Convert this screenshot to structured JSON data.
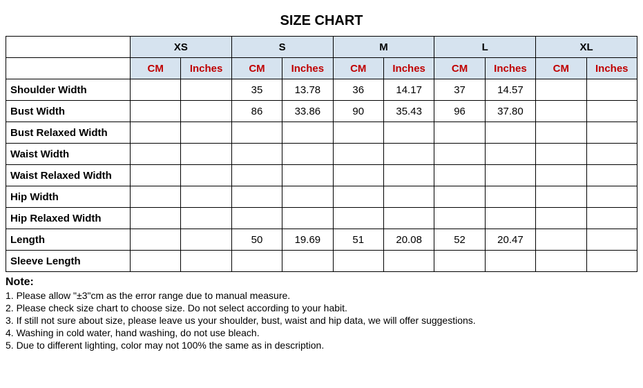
{
  "title": "SIZE CHART",
  "sizes": [
    "XS",
    "S",
    "M",
    "L",
    "XL"
  ],
  "units": {
    "cm": "CM",
    "inches": "Inches"
  },
  "rowLabels": [
    "Shoulder Width",
    "Bust Width",
    "Bust Relaxed Width",
    "Waist Width",
    "Waist Relaxed Width",
    "Hip Width",
    "Hip Relaxed Width",
    "Length",
    "Sleeve Length"
  ],
  "data": {
    "Shoulder Width": {
      "XS": {
        "cm": "",
        "in": ""
      },
      "S": {
        "cm": "35",
        "in": "13.78"
      },
      "M": {
        "cm": "36",
        "in": "14.17"
      },
      "L": {
        "cm": "37",
        "in": "14.57"
      },
      "XL": {
        "cm": "",
        "in": ""
      }
    },
    "Bust Width": {
      "XS": {
        "cm": "",
        "in": ""
      },
      "S": {
        "cm": "86",
        "in": "33.86"
      },
      "M": {
        "cm": "90",
        "in": "35.43"
      },
      "L": {
        "cm": "96",
        "in": "37.80"
      },
      "XL": {
        "cm": "",
        "in": ""
      }
    },
    "Bust Relaxed Width": {
      "XS": {
        "cm": "",
        "in": ""
      },
      "S": {
        "cm": "",
        "in": ""
      },
      "M": {
        "cm": "",
        "in": ""
      },
      "L": {
        "cm": "",
        "in": ""
      },
      "XL": {
        "cm": "",
        "in": ""
      }
    },
    "Waist Width": {
      "XS": {
        "cm": "",
        "in": ""
      },
      "S": {
        "cm": "",
        "in": ""
      },
      "M": {
        "cm": "",
        "in": ""
      },
      "L": {
        "cm": "",
        "in": ""
      },
      "XL": {
        "cm": "",
        "in": ""
      }
    },
    "Waist Relaxed Width": {
      "XS": {
        "cm": "",
        "in": ""
      },
      "S": {
        "cm": "",
        "in": ""
      },
      "M": {
        "cm": "",
        "in": ""
      },
      "L": {
        "cm": "",
        "in": ""
      },
      "XL": {
        "cm": "",
        "in": ""
      }
    },
    "Hip Width": {
      "XS": {
        "cm": "",
        "in": ""
      },
      "S": {
        "cm": "",
        "in": ""
      },
      "M": {
        "cm": "",
        "in": ""
      },
      "L": {
        "cm": "",
        "in": ""
      },
      "XL": {
        "cm": "",
        "in": ""
      }
    },
    "Hip Relaxed Width": {
      "XS": {
        "cm": "",
        "in": ""
      },
      "S": {
        "cm": "",
        "in": ""
      },
      "M": {
        "cm": "",
        "in": ""
      },
      "L": {
        "cm": "",
        "in": ""
      },
      "XL": {
        "cm": "",
        "in": ""
      }
    },
    "Length": {
      "XS": {
        "cm": "",
        "in": ""
      },
      "S": {
        "cm": "50",
        "in": "19.69"
      },
      "M": {
        "cm": "51",
        "in": "20.08"
      },
      "L": {
        "cm": "52",
        "in": "20.47"
      },
      "XL": {
        "cm": "",
        "in": ""
      }
    },
    "Sleeve Length": {
      "XS": {
        "cm": "",
        "in": ""
      },
      "S": {
        "cm": "",
        "in": ""
      },
      "M": {
        "cm": "",
        "in": ""
      },
      "L": {
        "cm": "",
        "in": ""
      },
      "XL": {
        "cm": "",
        "in": ""
      }
    }
  },
  "notes": {
    "title": "Note:",
    "lines": [
      "1. Please allow \"±3\"cm as the error range due to manual measure.",
      "2. Please check size chart to choose size. Do not select according to your habit.",
      "3. If still not sure about size, please leave us your shoulder, bust, waist and hip data, we will offer suggestions.",
      "4. Washing in cold water, hand washing, do not use bleach.",
      "5. Due to different lighting, color may not 100% the same as in description."
    ]
  },
  "colors": {
    "headerBg": "#d6e3ef",
    "unitText": "#c00000",
    "border": "#000000",
    "background": "#ffffff"
  }
}
